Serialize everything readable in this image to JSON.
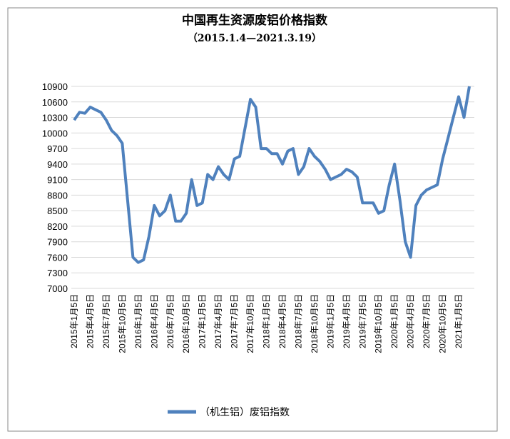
{
  "chart_data": {
    "type": "line",
    "title": "中国再生资源废铝价格指数",
    "subtitle": "（2015.1.4—2021.3.19）",
    "categories": [
      "2015年1月5日",
      null,
      null,
      "2015年4月5日",
      null,
      null,
      "2015年7月5日",
      null,
      null,
      "2015年10月5日",
      null,
      null,
      "2016年1月5日",
      null,
      null,
      "2016年4月5日",
      null,
      null,
      "2016年7月5日",
      null,
      null,
      "2016年10月5日",
      null,
      null,
      "2017年1月5日",
      null,
      null,
      "2017年4月5日",
      null,
      null,
      "2017年7月5日",
      null,
      null,
      "2017年10月5日",
      null,
      null,
      "2018年1月5日",
      null,
      null,
      "2018年4月5日",
      null,
      null,
      "2018年7月5日",
      null,
      null,
      "2018年10月5日",
      null,
      null,
      "2019年1月5日",
      null,
      null,
      "2019年4月5日",
      null,
      null,
      "2019年7月5日",
      null,
      null,
      "2019年10月5日",
      null,
      null,
      "2020年1月5日",
      null,
      null,
      "2020年4月5日",
      null,
      null,
      "2020年7月5日",
      null,
      null,
      "2020年10月5日",
      null,
      null,
      "2021年1月5日",
      null,
      null
    ],
    "series": [
      {
        "name": "（机生铝）废铝指数",
        "color": "#4f81bd",
        "values": [
          10250,
          10400,
          10380,
          10500,
          10450,
          10400,
          10250,
          10050,
          9950,
          9800,
          8700,
          7600,
          7500,
          7550,
          8000,
          8600,
          8400,
          8500,
          8800,
          8300,
          8300,
          8450,
          9100,
          8600,
          8650,
          9200,
          9100,
          9350,
          9200,
          9100,
          9500,
          9550,
          10100,
          10650,
          10500,
          9700,
          9700,
          9600,
          9600,
          9400,
          9650,
          9700,
          9200,
          9350,
          9700,
          9550,
          9450,
          9300,
          9100,
          9150,
          9200,
          9300,
          9250,
          9150,
          8650,
          8650,
          8650,
          8450,
          8500,
          9000,
          9400,
          8700,
          7900,
          7600,
          8600,
          8800,
          8900,
          8950,
          9000,
          9500,
          9900,
          10300,
          10700,
          10300,
          10900
        ]
      }
    ],
    "ylim": [
      7000,
      10900
    ],
    "yticks": [
      7000,
      7300,
      7600,
      7900,
      8200,
      8500,
      8800,
      9100,
      9400,
      9700,
      10000,
      10300,
      10600,
      10900
    ],
    "grid": true
  }
}
